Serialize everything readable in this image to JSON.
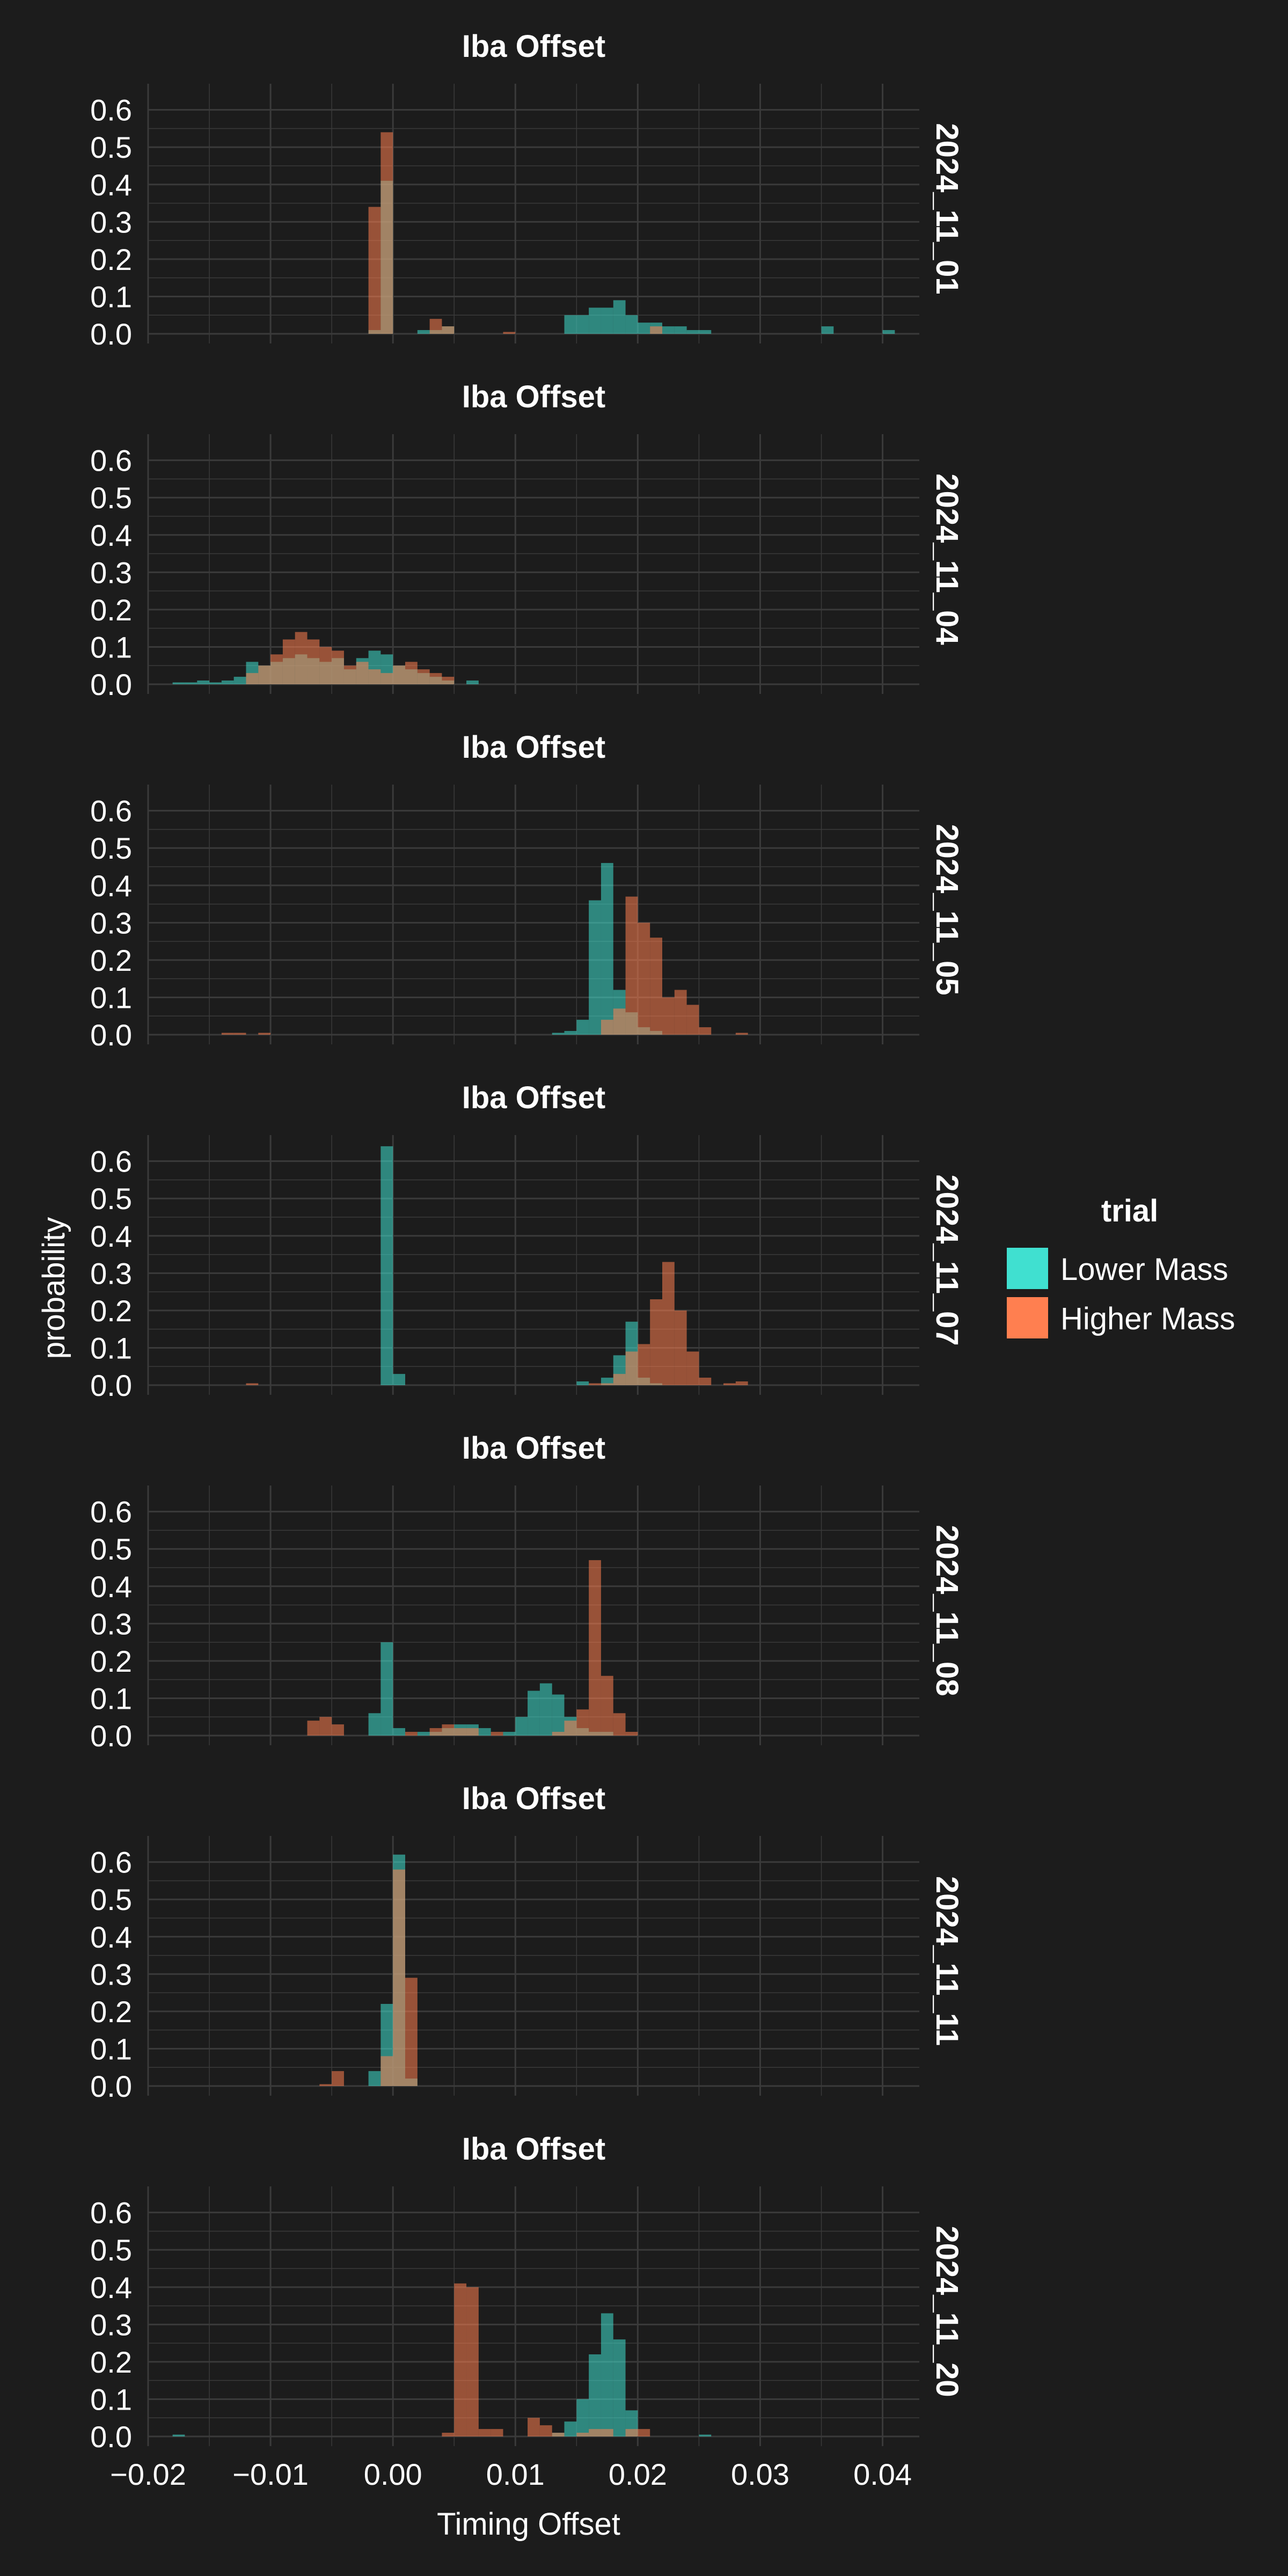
{
  "figure": {
    "background": "#1c1c1c",
    "panel_background": "#1c1c1c",
    "grid_color": "#3a3a3a",
    "text_color": "#ffffff",
    "xlabel": "Timing Offset",
    "ylabel": "probability"
  },
  "legend": {
    "title": "trial",
    "entries": [
      {
        "label": "Lower Mass",
        "color": "#40e0d0"
      },
      {
        "label": "Higher Mass",
        "color": "#ff7f50"
      }
    ],
    "placement": "right"
  },
  "chart_data": [
    {
      "type": "histogram",
      "title": "Iba Offset",
      "facet_label": "2024_11_01",
      "xlim": [
        -0.02,
        0.043
      ],
      "ylim": [
        0,
        0.67
      ],
      "x_ticks": [
        "−0.02",
        "−0.01",
        "0.00",
        "0.01",
        "0.02",
        "0.03",
        "0.04"
      ],
      "y_ticks": [
        "0.0",
        "0.1",
        "0.2",
        "0.3",
        "0.4",
        "0.5",
        "0.6"
      ],
      "bin_width": 0.001,
      "series": [
        {
          "name": "Lower Mass",
          "color": "#40e0d0",
          "bins": [
            [
              -0.0015,
              0.01
            ],
            [
              -0.0005,
              0.41
            ],
            [
              0.0025,
              0.01
            ],
            [
              0.0035,
              0.01
            ],
            [
              0.0045,
              0.02
            ],
            [
              0.0145,
              0.05
            ],
            [
              0.0155,
              0.05
            ],
            [
              0.0165,
              0.07
            ],
            [
              0.0175,
              0.07
            ],
            [
              0.0185,
              0.09
            ],
            [
              0.0195,
              0.05
            ],
            [
              0.0205,
              0.03
            ],
            [
              0.0215,
              0.03
            ],
            [
              0.0225,
              0.02
            ],
            [
              0.0235,
              0.02
            ],
            [
              0.0245,
              0.01
            ],
            [
              0.0255,
              0.01
            ],
            [
              0.0355,
              0.02
            ],
            [
              0.0405,
              0.01
            ]
          ]
        },
        {
          "name": "Higher Mass",
          "color": "#ff7f50",
          "bins": [
            [
              -0.0015,
              0.34
            ],
            [
              -0.0005,
              0.54
            ],
            [
              0.0035,
              0.04
            ],
            [
              0.0045,
              0.02
            ],
            [
              0.0095,
              0.005
            ],
            [
              0.0215,
              0.02
            ]
          ]
        }
      ]
    },
    {
      "type": "histogram",
      "title": "Iba Offset",
      "facet_label": "2024_11_04",
      "xlim": [
        -0.02,
        0.043
      ],
      "ylim": [
        0,
        0.67
      ],
      "x_ticks": [
        "−0.02",
        "−0.01",
        "0.00",
        "0.01",
        "0.02",
        "0.03",
        "0.04"
      ],
      "y_ticks": [
        "0.0",
        "0.1",
        "0.2",
        "0.3",
        "0.4",
        "0.5",
        "0.6"
      ],
      "bin_width": 0.001,
      "series": [
        {
          "name": "Lower Mass",
          "color": "#40e0d0",
          "bins": [
            [
              -0.0175,
              0.005
            ],
            [
              -0.0165,
              0.005
            ],
            [
              -0.0155,
              0.01
            ],
            [
              -0.0145,
              0.005
            ],
            [
              -0.0135,
              0.01
            ],
            [
              -0.0125,
              0.02
            ],
            [
              -0.0115,
              0.06
            ],
            [
              -0.0105,
              0.05
            ],
            [
              -0.0095,
              0.06
            ],
            [
              -0.0085,
              0.07
            ],
            [
              -0.0075,
              0.08
            ],
            [
              -0.0065,
              0.07
            ],
            [
              -0.0055,
              0.06
            ],
            [
              -0.0045,
              0.07
            ],
            [
              -0.0035,
              0.04
            ],
            [
              -0.0025,
              0.07
            ],
            [
              -0.0015,
              0.09
            ],
            [
              -0.0005,
              0.08
            ],
            [
              0.0005,
              0.05
            ],
            [
              0.0015,
              0.04
            ],
            [
              0.0025,
              0.03
            ],
            [
              0.0035,
              0.02
            ],
            [
              0.0045,
              0.01
            ],
            [
              0.0065,
              0.01
            ]
          ]
        },
        {
          "name": "Higher Mass",
          "color": "#ff7f50",
          "bins": [
            [
              -0.0115,
              0.03
            ],
            [
              -0.0105,
              0.05
            ],
            [
              -0.0095,
              0.08
            ],
            [
              -0.0085,
              0.12
            ],
            [
              -0.0075,
              0.14
            ],
            [
              -0.0065,
              0.12
            ],
            [
              -0.0055,
              0.1
            ],
            [
              -0.0045,
              0.09
            ],
            [
              -0.0035,
              0.05
            ],
            [
              -0.0025,
              0.06
            ],
            [
              -0.0015,
              0.04
            ],
            [
              -0.0005,
              0.03
            ],
            [
              0.0005,
              0.05
            ],
            [
              0.0015,
              0.06
            ],
            [
              0.0025,
              0.04
            ],
            [
              0.0035,
              0.03
            ],
            [
              0.0045,
              0.02
            ]
          ]
        }
      ]
    },
    {
      "type": "histogram",
      "title": "Iba Offset",
      "facet_label": "2024_11_05",
      "xlim": [
        -0.02,
        0.043
      ],
      "ylim": [
        0,
        0.67
      ],
      "x_ticks": [
        "−0.02",
        "−0.01",
        "0.00",
        "0.01",
        "0.02",
        "0.03",
        "0.04"
      ],
      "y_ticks": [
        "0.0",
        "0.1",
        "0.2",
        "0.3",
        "0.4",
        "0.5",
        "0.6"
      ],
      "bin_width": 0.001,
      "series": [
        {
          "name": "Lower Mass",
          "color": "#40e0d0",
          "bins": [
            [
              0.0135,
              0.005
            ],
            [
              0.0145,
              0.01
            ],
            [
              0.0155,
              0.04
            ],
            [
              0.0165,
              0.36
            ],
            [
              0.0175,
              0.46
            ],
            [
              0.0185,
              0.12
            ],
            [
              0.0195,
              0.06
            ],
            [
              0.0205,
              0.02
            ],
            [
              0.0215,
              0.01
            ]
          ]
        },
        {
          "name": "Higher Mass",
          "color": "#ff7f50",
          "bins": [
            [
              -0.0135,
              0.005
            ],
            [
              -0.0125,
              0.005
            ],
            [
              -0.0105,
              0.005
            ],
            [
              0.0175,
              0.04
            ],
            [
              0.0185,
              0.07
            ],
            [
              0.0195,
              0.37
            ],
            [
              0.0205,
              0.3
            ],
            [
              0.0215,
              0.26
            ],
            [
              0.0225,
              0.1
            ],
            [
              0.0235,
              0.12
            ],
            [
              0.0245,
              0.08
            ],
            [
              0.0255,
              0.02
            ],
            [
              0.0285,
              0.005
            ]
          ]
        }
      ]
    },
    {
      "type": "histogram",
      "title": "Iba Offset",
      "facet_label": "2024_11_07",
      "xlim": [
        -0.02,
        0.043
      ],
      "ylim": [
        0,
        0.67
      ],
      "x_ticks": [
        "−0.02",
        "−0.01",
        "0.00",
        "0.01",
        "0.02",
        "0.03",
        "0.04"
      ],
      "y_ticks": [
        "0.0",
        "0.1",
        "0.2",
        "0.3",
        "0.4",
        "0.5",
        "0.6"
      ],
      "bin_width": 0.001,
      "series": [
        {
          "name": "Lower Mass",
          "color": "#40e0d0",
          "bins": [
            [
              -0.0005,
              0.64
            ],
            [
              0.0005,
              0.03
            ],
            [
              0.0155,
              0.01
            ],
            [
              0.0175,
              0.02
            ],
            [
              0.0185,
              0.08
            ],
            [
              0.0195,
              0.17
            ],
            [
              0.0205,
              0.02
            ],
            [
              0.0215,
              0.005
            ]
          ]
        },
        {
          "name": "Higher Mass",
          "color": "#ff7f50",
          "bins": [
            [
              -0.0115,
              0.005
            ],
            [
              0.0165,
              0.005
            ],
            [
              0.0175,
              0.005
            ],
            [
              0.0185,
              0.03
            ],
            [
              0.0195,
              0.09
            ],
            [
              0.0205,
              0.11
            ],
            [
              0.0215,
              0.23
            ],
            [
              0.0225,
              0.33
            ],
            [
              0.0235,
              0.2
            ],
            [
              0.0245,
              0.09
            ],
            [
              0.0255,
              0.02
            ],
            [
              0.0275,
              0.005
            ],
            [
              0.0285,
              0.01
            ]
          ]
        }
      ]
    },
    {
      "type": "histogram",
      "title": "Iba Offset",
      "facet_label": "2024_11_08",
      "xlim": [
        -0.02,
        0.043
      ],
      "ylim": [
        0,
        0.67
      ],
      "x_ticks": [
        "−0.02",
        "−0.01",
        "0.00",
        "0.01",
        "0.02",
        "0.03",
        "0.04"
      ],
      "y_ticks": [
        "0.0",
        "0.1",
        "0.2",
        "0.3",
        "0.4",
        "0.5",
        "0.6"
      ],
      "bin_width": 0.001,
      "series": [
        {
          "name": "Lower Mass",
          "color": "#40e0d0",
          "bins": [
            [
              -0.0015,
              0.06
            ],
            [
              -0.0005,
              0.25
            ],
            [
              0.0005,
              0.02
            ],
            [
              0.0025,
              0.01
            ],
            [
              0.0035,
              0.01
            ],
            [
              0.0045,
              0.02
            ],
            [
              0.0055,
              0.03
            ],
            [
              0.0065,
              0.03
            ],
            [
              0.0075,
              0.02
            ],
            [
              0.0095,
              0.01
            ],
            [
              0.0105,
              0.05
            ],
            [
              0.0115,
              0.12
            ],
            [
              0.0125,
              0.14
            ],
            [
              0.0135,
              0.11
            ],
            [
              0.0145,
              0.05
            ],
            [
              0.0155,
              0.02
            ],
            [
              0.0165,
              0.01
            ],
            [
              0.0175,
              0.01
            ]
          ]
        },
        {
          "name": "Higher Mass",
          "color": "#ff7f50",
          "bins": [
            [
              -0.0065,
              0.04
            ],
            [
              -0.0055,
              0.05
            ],
            [
              -0.0045,
              0.03
            ],
            [
              0.0015,
              0.01
            ],
            [
              0.0035,
              0.02
            ],
            [
              0.0045,
              0.03
            ],
            [
              0.0055,
              0.02
            ],
            [
              0.0065,
              0.02
            ],
            [
              0.0085,
              0.01
            ],
            [
              0.0135,
              0.01
            ],
            [
              0.0145,
              0.04
            ],
            [
              0.0155,
              0.07
            ],
            [
              0.0165,
              0.47
            ],
            [
              0.0175,
              0.16
            ],
            [
              0.0185,
              0.06
            ],
            [
              0.0195,
              0.01
            ]
          ]
        }
      ]
    },
    {
      "type": "histogram",
      "title": "Iba Offset",
      "facet_label": "2024_11_11",
      "xlim": [
        -0.02,
        0.043
      ],
      "ylim": [
        0,
        0.67
      ],
      "x_ticks": [
        "−0.02",
        "−0.01",
        "0.00",
        "0.01",
        "0.02",
        "0.03",
        "0.04"
      ],
      "y_ticks": [
        "0.0",
        "0.1",
        "0.2",
        "0.3",
        "0.4",
        "0.5",
        "0.6"
      ],
      "bin_width": 0.001,
      "series": [
        {
          "name": "Lower Mass",
          "color": "#40e0d0",
          "bins": [
            [
              -0.0015,
              0.04
            ],
            [
              -0.0005,
              0.22
            ],
            [
              0.0005,
              0.62
            ],
            [
              0.0015,
              0.02
            ]
          ]
        },
        {
          "name": "Higher Mass",
          "color": "#ff7f50",
          "bins": [
            [
              -0.0055,
              0.005
            ],
            [
              -0.0045,
              0.04
            ],
            [
              -0.0005,
              0.08
            ],
            [
              0.0005,
              0.58
            ],
            [
              0.0015,
              0.29
            ]
          ]
        }
      ]
    },
    {
      "type": "histogram",
      "title": "Iba Offset",
      "facet_label": "2024_11_20",
      "xlim": [
        -0.02,
        0.043
      ],
      "ylim": [
        0,
        0.67
      ],
      "x_ticks": [
        "−0.02",
        "−0.01",
        "0.00",
        "0.01",
        "0.02",
        "0.03",
        "0.04"
      ],
      "y_ticks": [
        "0.0",
        "0.1",
        "0.2",
        "0.3",
        "0.4",
        "0.5",
        "0.6"
      ],
      "bin_width": 0.001,
      "series": [
        {
          "name": "Lower Mass",
          "color": "#40e0d0",
          "bins": [
            [
              -0.0175,
              0.005
            ],
            [
              0.0135,
              0.01
            ],
            [
              0.0145,
              0.04
            ],
            [
              0.0155,
              0.1
            ],
            [
              0.0165,
              0.22
            ],
            [
              0.0175,
              0.33
            ],
            [
              0.0185,
              0.26
            ],
            [
              0.0195,
              0.07
            ],
            [
              0.0255,
              0.005
            ]
          ]
        },
        {
          "name": "Higher Mass",
          "color": "#ff7f50",
          "bins": [
            [
              0.0045,
              0.01
            ],
            [
              0.0055,
              0.41
            ],
            [
              0.0065,
              0.4
            ],
            [
              0.0075,
              0.02
            ],
            [
              0.0085,
              0.02
            ],
            [
              0.0115,
              0.05
            ],
            [
              0.0125,
              0.03
            ],
            [
              0.0135,
              0.01
            ],
            [
              0.0155,
              0.01
            ],
            [
              0.0165,
              0.02
            ],
            [
              0.0175,
              0.02
            ],
            [
              0.0195,
              0.02
            ],
            [
              0.0205,
              0.02
            ]
          ]
        }
      ]
    }
  ]
}
